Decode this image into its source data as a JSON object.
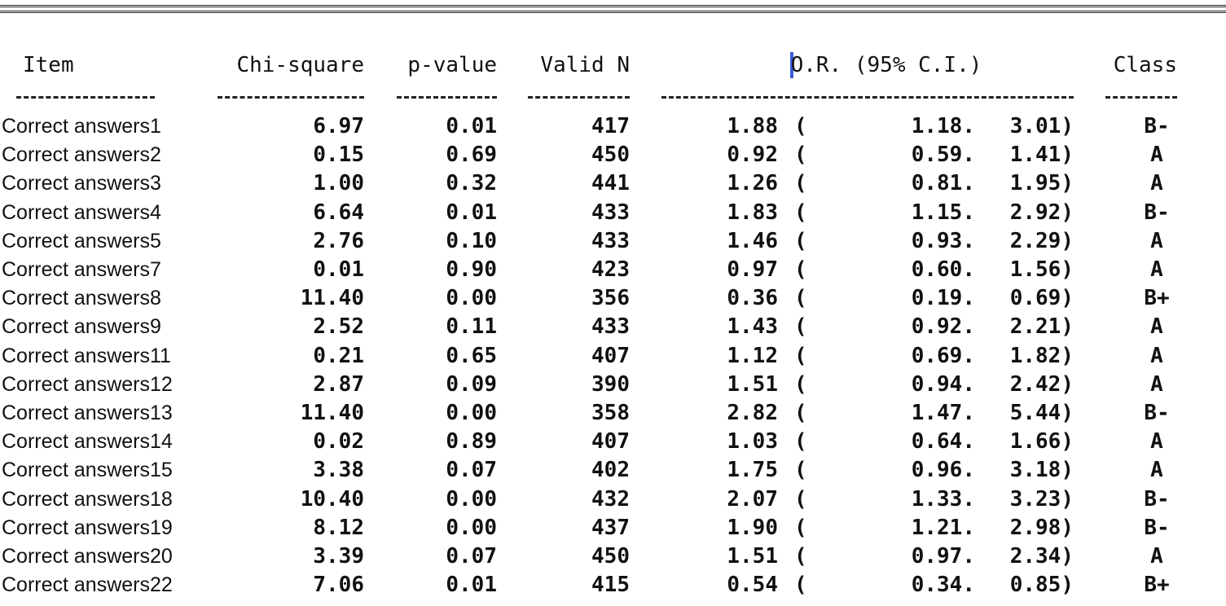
{
  "table": {
    "header": [
      "Item",
      "Chi-square",
      "p-value",
      "Valid N",
      "O.R. (95% C.I.)",
      "Class"
    ],
    "rows": [
      [
        "Correct answers1",
        "6.97",
        "0.01",
        "417",
        "1.88",
        "(",
        "1.18.",
        "3.01)",
        "B-"
      ],
      [
        "Correct answers2",
        "0.15",
        "0.69",
        "450",
        "0.92",
        "(",
        "0.59.",
        "1.41)",
        "A"
      ],
      [
        "Correct answers3",
        "1.00",
        "0.32",
        "441",
        "1.26",
        "(",
        "0.81.",
        "1.95)",
        "A"
      ],
      [
        "Correct answers4",
        "6.64",
        "0.01",
        "433",
        "1.83",
        "(",
        "1.15.",
        "2.92)",
        "B-"
      ],
      [
        "Correct answers5",
        "2.76",
        "0.10",
        "433",
        "1.46",
        "(",
        "0.93.",
        "2.29)",
        "A"
      ],
      [
        "Correct answers7",
        "0.01",
        "0.90",
        "423",
        "0.97",
        "(",
        "0.60.",
        "1.56)",
        "A"
      ],
      [
        "Correct answers8",
        "11.40",
        "0.00",
        "356",
        "0.36",
        "(",
        "0.19.",
        "0.69)",
        "B+"
      ],
      [
        "Correct answers9",
        "2.52",
        "0.11",
        "433",
        "1.43",
        "(",
        "0.92.",
        "2.21)",
        "A"
      ],
      [
        "Correct answers11",
        "0.21",
        "0.65",
        "407",
        "1.12",
        "(",
        "0.69.",
        "1.82)",
        "A"
      ],
      [
        "Correct answers12",
        "2.87",
        "0.09",
        "390",
        "1.51",
        "(",
        "0.94.",
        "2.42)",
        "A"
      ],
      [
        "Correct answers13",
        "11.40",
        "0.00",
        "358",
        "2.82",
        "(",
        "1.47.",
        "5.44)",
        "B-"
      ],
      [
        "Correct answers14",
        "0.02",
        "0.89",
        "407",
        "1.03",
        "(",
        "0.64.",
        "1.66)",
        "A"
      ],
      [
        "Correct answers15",
        "3.38",
        "0.07",
        "402",
        "1.75",
        "(",
        "0.96.",
        "3.18)",
        "A"
      ],
      [
        "Correct answers18",
        "10.40",
        "0.00",
        "432",
        "2.07",
        "(",
        "1.33.",
        "3.23)",
        "B-"
      ],
      [
        "Correct answers19",
        "8.12",
        "0.00",
        "437",
        "1.90",
        "(",
        "1.21.",
        "2.98)",
        "B-"
      ],
      [
        "Correct answers20",
        "3.39",
        "0.07",
        "450",
        "1.51",
        "(",
        "0.97.",
        "2.34)",
        "A"
      ],
      [
        "Correct answers22",
        "7.06",
        "0.01",
        "415",
        "0.54",
        "(",
        "0.34.",
        "0.85)",
        "B+"
      ]
    ]
  }
}
